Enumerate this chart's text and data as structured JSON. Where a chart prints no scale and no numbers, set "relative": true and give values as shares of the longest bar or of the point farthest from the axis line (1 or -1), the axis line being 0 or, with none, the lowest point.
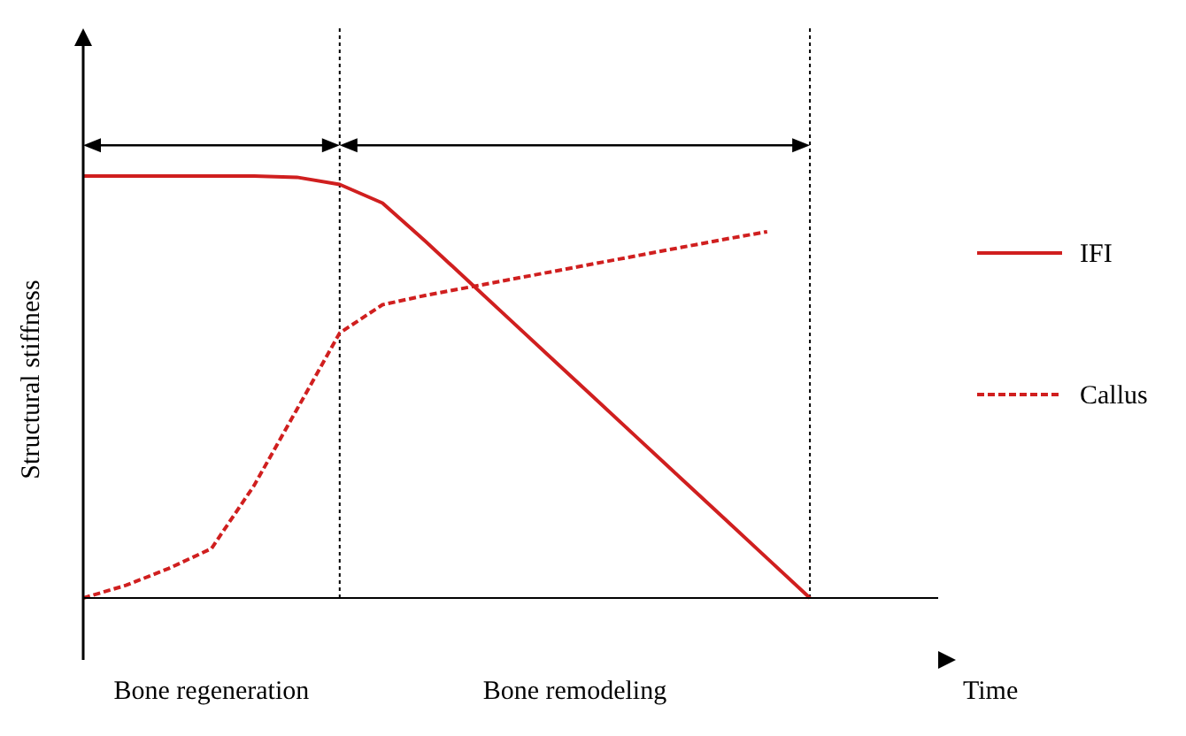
{
  "chart_data": {
    "type": "line",
    "relative": true,
    "xlabel": "Time",
    "ylabel": "Structural stiffness",
    "categories": [
      null,
      null,
      null,
      null,
      null,
      null,
      null,
      null,
      null,
      null,
      null,
      null,
      null,
      null,
      null,
      null,
      null,
      null,
      null,
      null,
      null
    ],
    "series": [
      {
        "name": "IFI",
        "color": "#d01f1f",
        "line_style": "solid",
        "values": [
          1,
          1,
          1,
          1,
          1,
          0.997,
          0.98,
          0.936,
          0.846,
          0.752,
          0.658,
          0.564,
          0.47,
          0.376,
          0.282,
          0.188,
          0.094,
          0,
          null,
          null,
          null
        ]
      },
      {
        "name": "Callus",
        "color": "#d01f1f",
        "line_style": "dashed",
        "values": [
          0,
          0.03,
          0.07,
          0.117,
          0.267,
          0.447,
          0.628,
          0.695,
          0.717,
          0.736,
          0.755,
          0.774,
          0.793,
          0.812,
          0.831,
          0.85,
          0.868,
          null,
          null,
          null,
          null
        ]
      }
    ],
    "annotations": [
      "Bone regeneration",
      "Bone remodeling"
    ],
    "legend": "right",
    "grid": false,
    "marker": "none",
    "tick_labels": false
  }
}
